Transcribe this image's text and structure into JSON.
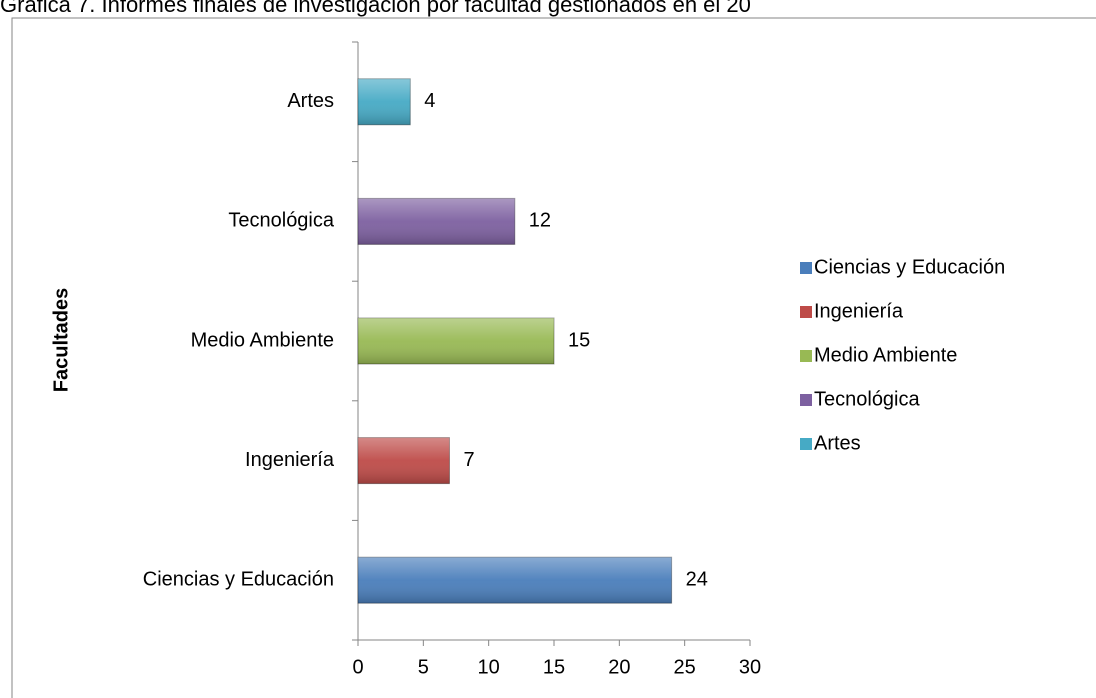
{
  "chart_data": {
    "type": "bar",
    "orientation": "horizontal",
    "title": "Gráfica 7. Informes finales de investigación por facultad  gestionados en el 20",
    "y_label": "Facultades",
    "categories": [
      "Ciencias y Educación",
      "Ingeniería",
      "Medio Ambiente",
      "Tecnológica",
      "Artes"
    ],
    "values": [
      24,
      7,
      15,
      12,
      4
    ],
    "colors": [
      "#4a7ebb",
      "#be4b48",
      "#98b954",
      "#7d60a0",
      "#46aac5"
    ],
    "xlim": [
      0,
      30
    ],
    "xticks": [
      0,
      5,
      10,
      15,
      20,
      25,
      30
    ],
    "legend": "right",
    "grid": false
  }
}
